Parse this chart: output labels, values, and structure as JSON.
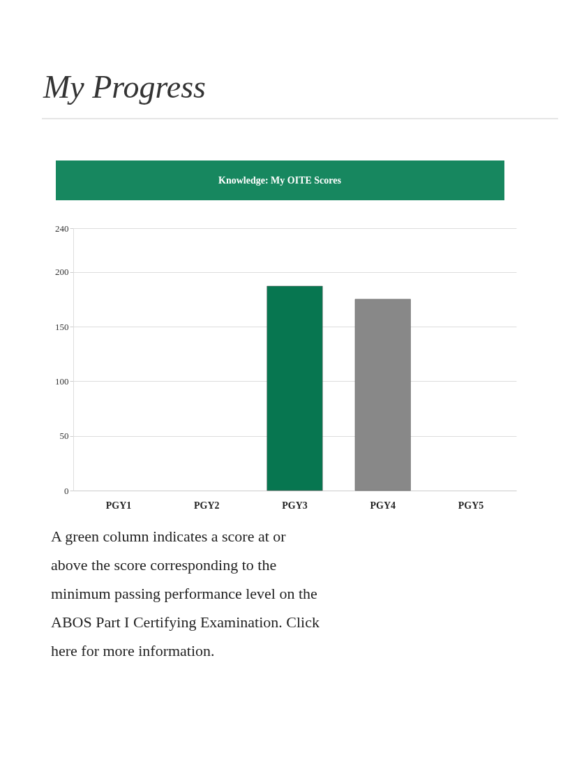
{
  "chart_data": {
    "type": "bar",
    "title": "My Progress",
    "subtitle": "Knowledge: My OITE Scores",
    "categories": [
      "PGY1",
      "PGY2",
      "PGY3",
      "PGY4",
      "PGY5"
    ],
    "values": [
      null,
      null,
      187,
      175,
      null
    ],
    "colors": [
      null,
      null,
      "#077650",
      "#888888",
      null
    ],
    "ylim": [
      0,
      240
    ],
    "yticks": [
      0,
      50,
      100,
      150,
      200,
      240
    ],
    "grid": "y",
    "annotations": [
      "A green column indicates a score at or above the score corresponding to the minimum passing performance level on the ABOS Part I Certifying Examination. Click here for more information."
    ]
  }
}
